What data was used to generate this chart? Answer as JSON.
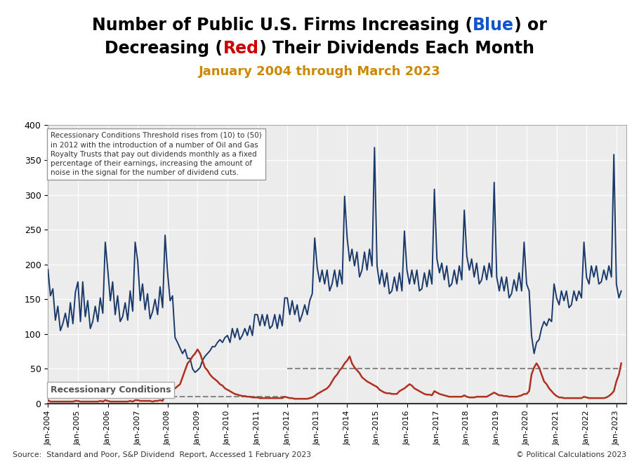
{
  "title_line1_pre": "Number of Public U.S. Firms Increasing (",
  "title_line1_blue": "Blue",
  "title_line1_post": ") or",
  "title_line2_pre": "Decreasing (",
  "title_line2_red": "Red",
  "title_line2_post": ") Their Dividends Each Month",
  "subtitle": "January 2004 through March 2023",
  "subtitle_color": "#cc8800",
  "blue_color": "#1a3a6b",
  "red_color": "#b03020",
  "dashed_color": "#888888",
  "annotation_text": "Recessionary Conditions Threshold rises from (10) to (50)\nin 2012 with the introduction of a number of Oil and Gas\nRoyalty Trusts that pay out dividends monthly as a fixed\npercentage of their earnings, increasing the amount of\nnoise in the signal for the number of dividend cuts.",
  "recessionary_label": "Recessionary Conditions",
  "source_text": "Source:  Standard and Poor, S&P Dividend  Report, Accessed 1 February 2023",
  "copyright_text": "© Political Calculations 2023",
  "source_color": "#333333",
  "copyright_color": "#333333",
  "ylim": [
    0,
    400
  ],
  "yticks": [
    0,
    50,
    100,
    150,
    200,
    250,
    300,
    350,
    400
  ],
  "background_color": "#ffffff",
  "plot_bg_color": "#ececec",
  "threshold_before_2012": 10,
  "threshold_after_2012": 50,
  "title_fontsize": 18,
  "subtitle_fontsize": 13,
  "blue_data": [
    193,
    155,
    165,
    120,
    140,
    105,
    115,
    130,
    110,
    145,
    115,
    160,
    175,
    118,
    175,
    125,
    148,
    108,
    118,
    140,
    118,
    152,
    130,
    232,
    192,
    148,
    175,
    128,
    155,
    118,
    125,
    145,
    120,
    162,
    133,
    232,
    205,
    148,
    172,
    135,
    158,
    122,
    132,
    150,
    128,
    168,
    138,
    242,
    188,
    148,
    155,
    95,
    88,
    80,
    72,
    78,
    65,
    65,
    50,
    45,
    48,
    52,
    62,
    68,
    72,
    76,
    82,
    82,
    88,
    92,
    88,
    95,
    98,
    88,
    108,
    95,
    108,
    92,
    98,
    108,
    98,
    112,
    98,
    128,
    128,
    112,
    128,
    112,
    128,
    108,
    112,
    128,
    108,
    128,
    112,
    152,
    152,
    128,
    148,
    128,
    142,
    118,
    128,
    142,
    128,
    148,
    158,
    238,
    195,
    175,
    192,
    172,
    192,
    162,
    172,
    192,
    168,
    192,
    172,
    298,
    238,
    205,
    222,
    198,
    218,
    182,
    192,
    218,
    192,
    222,
    198,
    368,
    198,
    172,
    192,
    168,
    188,
    158,
    162,
    182,
    162,
    188,
    162,
    248,
    192,
    172,
    192,
    172,
    192,
    162,
    165,
    188,
    168,
    192,
    172,
    308,
    208,
    188,
    202,
    178,
    198,
    168,
    172,
    192,
    172,
    198,
    178,
    278,
    212,
    192,
    208,
    182,
    202,
    172,
    178,
    198,
    178,
    202,
    182,
    318,
    182,
    162,
    182,
    162,
    182,
    152,
    158,
    178,
    162,
    188,
    162,
    232,
    172,
    162,
    98,
    72,
    88,
    92,
    108,
    118,
    112,
    122,
    118,
    172,
    152,
    142,
    162,
    148,
    162,
    138,
    142,
    162,
    148,
    162,
    152,
    232,
    182,
    172,
    198,
    182,
    198,
    172,
    175,
    192,
    178,
    198,
    182,
    358,
    172,
    152,
    162
  ],
  "red_data": [
    5,
    3,
    3,
    3,
    3,
    3,
    3,
    3,
    3,
    3,
    3,
    4,
    4,
    3,
    3,
    3,
    3,
    3,
    3,
    3,
    3,
    4,
    3,
    5,
    4,
    3,
    3,
    3,
    3,
    3,
    3,
    3,
    3,
    4,
    3,
    5,
    5,
    4,
    4,
    4,
    4,
    4,
    3,
    4,
    4,
    5,
    4,
    12,
    18,
    16,
    20,
    22,
    25,
    28,
    38,
    48,
    58,
    62,
    68,
    72,
    78,
    72,
    62,
    52,
    48,
    42,
    38,
    35,
    32,
    28,
    26,
    22,
    20,
    18,
    16,
    14,
    13,
    12,
    11,
    11,
    10,
    10,
    9,
    9,
    9,
    8,
    8,
    8,
    8,
    8,
    8,
    8,
    8,
    8,
    8,
    10,
    9,
    8,
    8,
    7,
    7,
    7,
    7,
    7,
    7,
    8,
    9,
    11,
    14,
    16,
    18,
    20,
    22,
    26,
    32,
    38,
    42,
    48,
    52,
    58,
    62,
    68,
    58,
    52,
    48,
    44,
    38,
    35,
    32,
    30,
    28,
    26,
    24,
    20,
    18,
    16,
    15,
    15,
    14,
    14,
    14,
    18,
    20,
    22,
    25,
    28,
    26,
    22,
    20,
    18,
    16,
    14,
    13,
    13,
    12,
    18,
    16,
    14,
    13,
    12,
    11,
    10,
    10,
    10,
    10,
    10,
    10,
    12,
    10,
    9,
    9,
    9,
    10,
    10,
    10,
    10,
    10,
    12,
    14,
    16,
    14,
    12,
    12,
    11,
    11,
    10,
    10,
    10,
    10,
    11,
    12,
    14,
    14,
    18,
    42,
    52,
    58,
    52,
    42,
    32,
    28,
    22,
    18,
    14,
    11,
    9,
    9,
    8,
    8,
    8,
    8,
    8,
    8,
    8,
    8,
    10,
    9,
    8,
    8,
    8,
    8,
    8,
    8,
    8,
    9,
    11,
    14,
    18,
    32,
    42,
    58
  ]
}
